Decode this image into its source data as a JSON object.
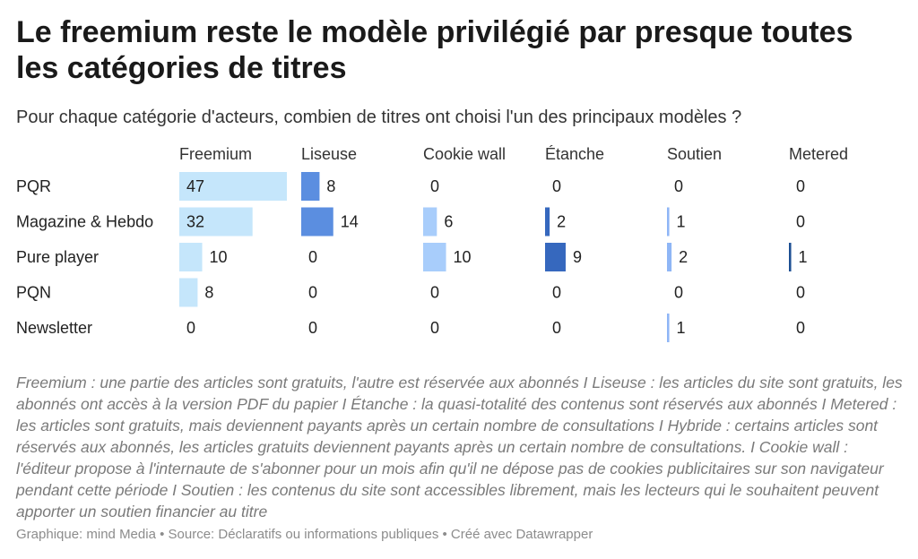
{
  "title": "Le freemium reste le modèle privilégié par presque toutes les catégories de titres",
  "subtitle": "Pour chaque catégorie d'acteurs, combien de titres ont choisi l'un des principaux modèles ?",
  "chart_data": {
    "type": "bar",
    "layout": "small-multiples-horizontal",
    "categories": [
      "PQR",
      "Magazine & Hebdo",
      "Pure player",
      "PQN",
      "Newsletter"
    ],
    "series": [
      {
        "name": "Freemium",
        "color": "#c5e6fb",
        "values": [
          47,
          32,
          10,
          8,
          0
        ]
      },
      {
        "name": "Liseuse",
        "color": "#5b8ee0",
        "values": [
          8,
          14,
          0,
          0,
          0
        ]
      },
      {
        "name": "Cookie wall",
        "color": "#a8cdfb",
        "values": [
          0,
          6,
          10,
          0,
          0
        ]
      },
      {
        "name": "Étanche",
        "color": "#3668be",
        "values": [
          0,
          2,
          9,
          0,
          0
        ]
      },
      {
        "name": "Soutien",
        "color": "#8fb6f6",
        "values": [
          0,
          1,
          2,
          0,
          1
        ]
      },
      {
        "name": "Metered",
        "color": "#1d4f93",
        "values": [
          0,
          0,
          1,
          0,
          0
        ]
      }
    ],
    "shared_scale_max": 47,
    "data_labels": true
  },
  "notes": "Freemium : une partie des articles sont gratuits, l'autre est réservée aux abonnés I Liseuse : les articles du site sont gratuits, les abonnés ont accès à la version PDF du papier I Étanche : la quasi-totalité des contenus sont réservés aux abonnés I Metered : les articles sont gratuits, mais deviennent payants après un certain nombre de consultations I Hybride : certains articles sont réservés aux abonnés, les articles gratuits deviennent payants après un certain nombre de consultations. I Cookie wall : l'éditeur propose à l'internaute de s'abonner pour un mois afin qu'il ne dépose pas de cookies publicitaires sur son navigateur pendant cette période I Soutien : les contenus du site sont accessibles librement, mais les lecteurs qui le souhaitent peuvent apporter un soutien financier au titre",
  "footer": "Graphique: mind Media • Source: Déclaratifs ou informations publiques • Créé avec Datawrapper"
}
